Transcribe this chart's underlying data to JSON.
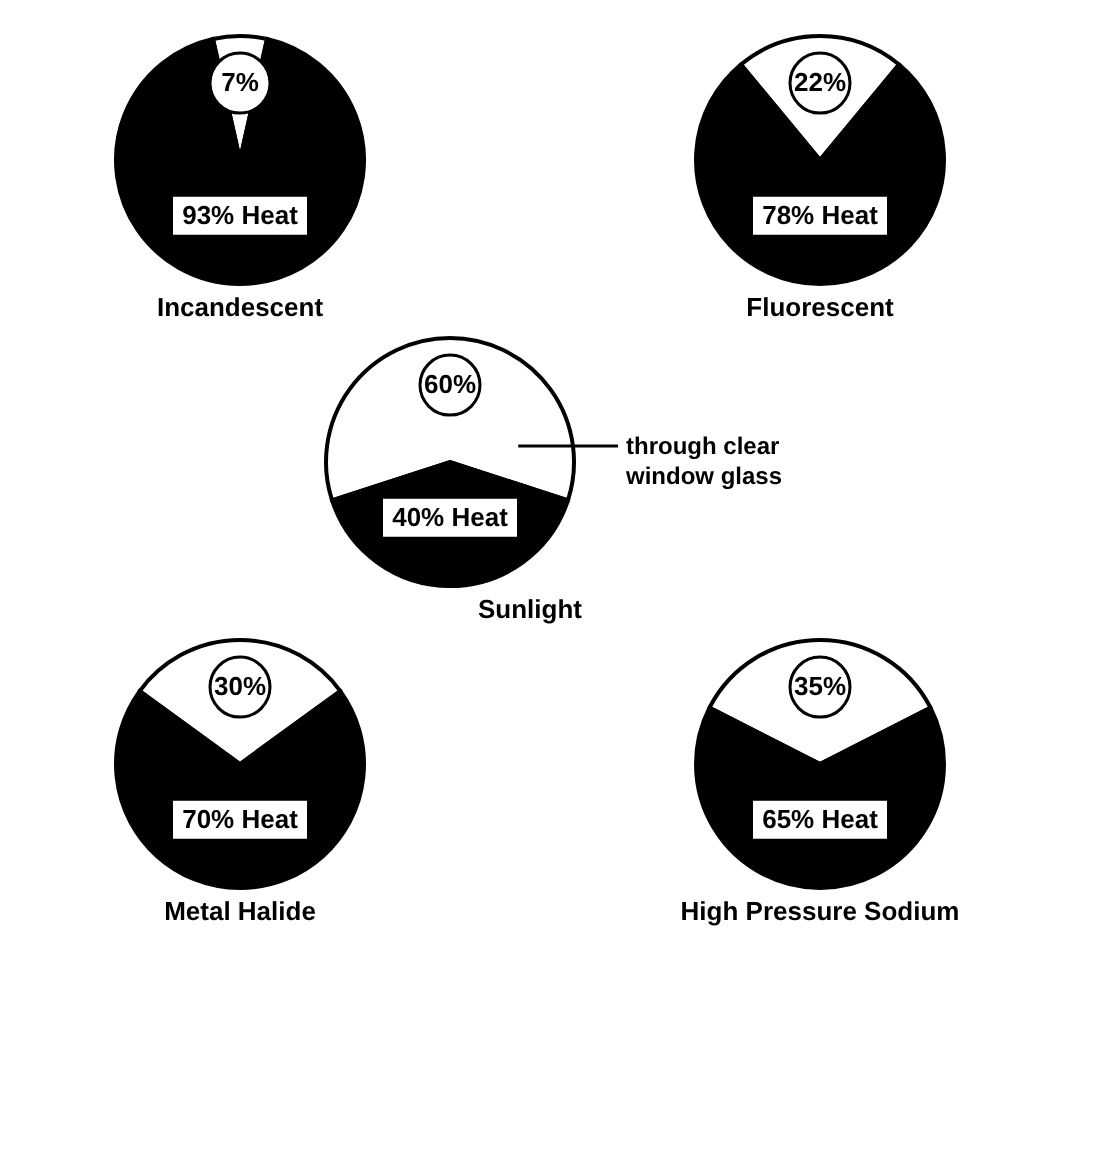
{
  "chart_data": [
    {
      "type": "pie",
      "title": "Incandescent",
      "categories": [
        null,
        null
      ],
      "values": [
        7,
        93
      ],
      "colors": [
        "#ffffff",
        "#000000"
      ],
      "value_labels": [
        "7%",
        "93% Heat"
      ]
    },
    {
      "type": "pie",
      "title": "Fluorescent",
      "categories": [
        null,
        null
      ],
      "values": [
        22,
        78
      ],
      "colors": [
        "#ffffff",
        "#000000"
      ],
      "value_labels": [
        "22%",
        "78% Heat"
      ]
    },
    {
      "type": "pie",
      "title": "Sunlight",
      "categories": [
        null,
        null
      ],
      "values": [
        60,
        40
      ],
      "colors": [
        "#ffffff",
        "#000000"
      ],
      "value_labels": [
        "60%",
        "40% Heat"
      ],
      "annotations": [
        "through clear window glass"
      ]
    },
    {
      "type": "pie",
      "title": "Metal Halide",
      "categories": [
        null,
        null
      ],
      "values": [
        30,
        70
      ],
      "colors": [
        "#ffffff",
        "#000000"
      ],
      "value_labels": [
        "30%",
        "70% Heat"
      ]
    },
    {
      "type": "pie",
      "title": "High Pressure Sodium",
      "categories": [
        null,
        null
      ],
      "values": [
        35,
        65
      ],
      "colors": [
        "#ffffff",
        "#000000"
      ],
      "value_labels": [
        "35%",
        "65% Heat"
      ]
    }
  ]
}
